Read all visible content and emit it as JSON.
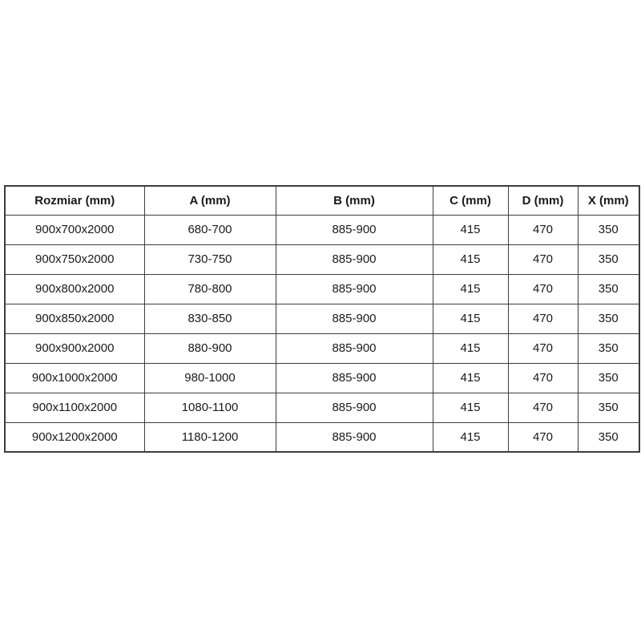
{
  "table": {
    "headers": [
      "Rozmiar (mm)",
      "A (mm)",
      "B (mm)",
      "C (mm)",
      "D (mm)",
      "X (mm)"
    ],
    "rows": [
      [
        "900x700x2000",
        "680-700",
        "885-900",
        "415",
        "470",
        "350"
      ],
      [
        "900x750x2000",
        "730-750",
        "885-900",
        "415",
        "470",
        "350"
      ],
      [
        "900x800x2000",
        "780-800",
        "885-900",
        "415",
        "470",
        "350"
      ],
      [
        "900x850x2000",
        "830-850",
        "885-900",
        "415",
        "470",
        "350"
      ],
      [
        "900x900x2000",
        "880-900",
        "885-900",
        "415",
        "470",
        "350"
      ],
      [
        "900x1000x2000",
        "980-1000",
        "885-900",
        "415",
        "470",
        "350"
      ],
      [
        "900x1100x2000",
        "1080-1100",
        "885-900",
        "415",
        "470",
        "350"
      ],
      [
        "900x1200x2000",
        "1180-1200",
        "885-900",
        "415",
        "470",
        "350"
      ]
    ],
    "border_color": "#3d3d3d",
    "text_color": "#1a1a1a",
    "background_color": "#ffffff"
  }
}
